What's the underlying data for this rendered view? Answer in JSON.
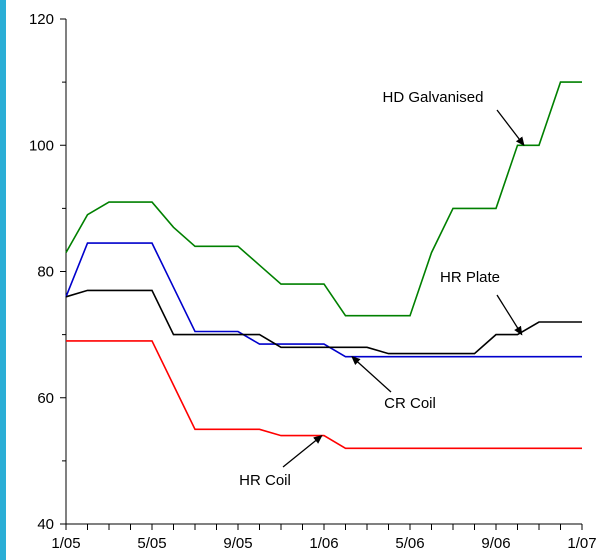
{
  "chart_data": {
    "type": "line",
    "title": "",
    "xlabel": "",
    "ylabel": "",
    "ylim": [
      40,
      120
    ],
    "yticks": [
      40,
      60,
      80,
      100,
      120
    ],
    "xlim": [
      0,
      24
    ],
    "xticks": [
      {
        "x": 0,
        "label": "1/05"
      },
      {
        "x": 4,
        "label": "5/05"
      },
      {
        "x": 8,
        "label": "9/05"
      },
      {
        "x": 12,
        "label": "1/06"
      },
      {
        "x": 16,
        "label": "5/06"
      },
      {
        "x": 20,
        "label": "9/06"
      },
      {
        "x": 24,
        "label": "1/07"
      }
    ],
    "grid": false,
    "series": [
      {
        "name": "HD Galvanised",
        "color": "#008000",
        "points": [
          [
            0,
            83
          ],
          [
            1,
            89
          ],
          [
            2,
            91
          ],
          [
            3,
            91
          ],
          [
            4,
            91
          ],
          [
            5,
            87
          ],
          [
            6,
            84
          ],
          [
            7,
            84
          ],
          [
            8,
            84
          ],
          [
            9,
            81
          ],
          [
            10,
            78
          ],
          [
            11,
            78
          ],
          [
            12,
            78
          ],
          [
            13,
            73
          ],
          [
            14,
            73
          ],
          [
            15,
            73
          ],
          [
            16,
            73
          ],
          [
            17,
            83
          ],
          [
            18,
            90
          ],
          [
            19,
            90
          ],
          [
            20,
            90
          ],
          [
            21,
            100
          ],
          [
            22,
            100
          ],
          [
            23,
            110
          ],
          [
            24,
            110
          ]
        ]
      },
      {
        "name": "CR Coil",
        "color": "#0000cc",
        "points": [
          [
            0,
            76
          ],
          [
            1,
            84.5
          ],
          [
            2,
            84.5
          ],
          [
            3,
            84.5
          ],
          [
            4,
            84.5
          ],
          [
            5,
            77.5
          ],
          [
            6,
            70.5
          ],
          [
            7,
            70.5
          ],
          [
            8,
            70.5
          ],
          [
            9,
            68.5
          ],
          [
            10,
            68.5
          ],
          [
            11,
            68.5
          ],
          [
            12,
            68.5
          ],
          [
            13,
            66.5
          ],
          [
            14,
            66.5
          ],
          [
            15,
            66.5
          ],
          [
            16,
            66.5
          ],
          [
            17,
            66.5
          ],
          [
            18,
            66.5
          ],
          [
            19,
            66.5
          ],
          [
            20,
            66.5
          ],
          [
            21,
            66.5
          ],
          [
            22,
            66.5
          ],
          [
            23,
            66.5
          ],
          [
            24,
            66.5
          ]
        ]
      },
      {
        "name": "HR Plate",
        "color": "#000000",
        "points": [
          [
            0,
            76
          ],
          [
            1,
            77
          ],
          [
            2,
            77
          ],
          [
            3,
            77
          ],
          [
            4,
            77
          ],
          [
            5,
            70
          ],
          [
            6,
            70
          ],
          [
            7,
            70
          ],
          [
            8,
            70
          ],
          [
            9,
            70
          ],
          [
            10,
            68
          ],
          [
            11,
            68
          ],
          [
            12,
            68
          ],
          [
            13,
            68
          ],
          [
            14,
            68
          ],
          [
            15,
            67
          ],
          [
            16,
            67
          ],
          [
            17,
            67
          ],
          [
            18,
            67
          ],
          [
            19,
            67
          ],
          [
            20,
            70
          ],
          [
            21,
            70
          ],
          [
            22,
            72
          ],
          [
            23,
            72
          ],
          [
            24,
            72
          ]
        ]
      },
      {
        "name": "HR Coil",
        "color": "#ff0000",
        "points": [
          [
            0,
            69
          ],
          [
            1,
            69
          ],
          [
            2,
            69
          ],
          [
            3,
            69
          ],
          [
            4,
            69
          ],
          [
            5,
            62
          ],
          [
            6,
            55
          ],
          [
            7,
            55
          ],
          [
            8,
            55
          ],
          [
            9,
            55
          ],
          [
            10,
            54
          ],
          [
            11,
            54
          ],
          [
            12,
            54
          ],
          [
            13,
            52
          ],
          [
            14,
            52
          ],
          [
            15,
            52
          ],
          [
            16,
            52
          ],
          [
            17,
            52
          ],
          [
            18,
            52
          ],
          [
            19,
            52
          ],
          [
            20,
            52
          ],
          [
            21,
            52
          ],
          [
            22,
            52
          ],
          [
            23,
            52
          ],
          [
            24,
            52
          ]
        ]
      }
    ],
    "annotations": [
      {
        "text": "HD Galvanised",
        "series": "HD Galvanised",
        "arrow_to": [
          21.3,
          100
        ]
      },
      {
        "text": "HR Plate",
        "series": "HR Plate",
        "arrow_to": [
          21.2,
          70
        ]
      },
      {
        "text": "CR Coil",
        "series": "CR Coil",
        "arrow_to": [
          13.3,
          66.5
        ]
      },
      {
        "text": "HR Coil",
        "series": "HR Coil",
        "arrow_to": [
          11.9,
          54
        ]
      }
    ]
  }
}
